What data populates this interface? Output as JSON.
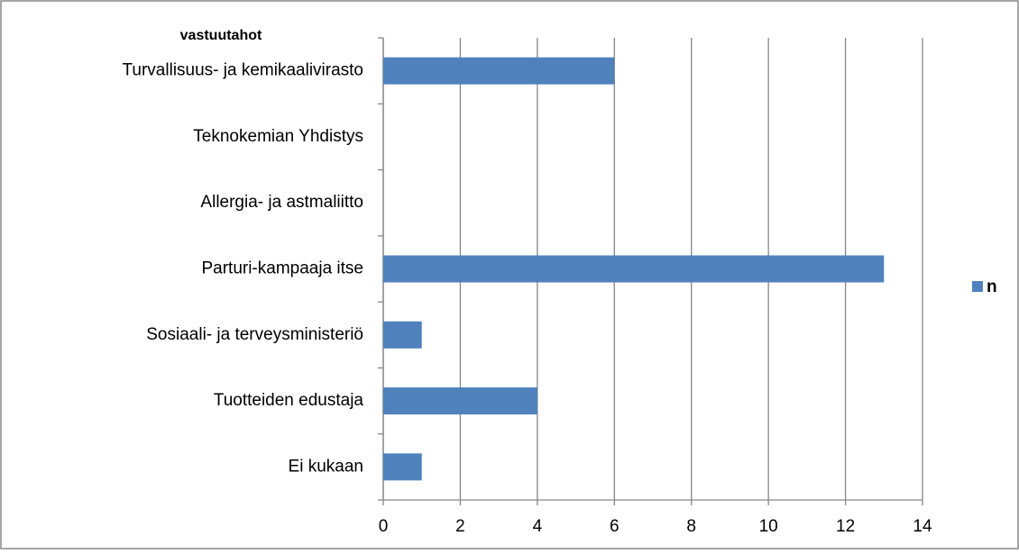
{
  "chart_data": {
    "type": "barh",
    "axis_title": "vastuutahot",
    "categories": [
      "Turvallisuus- ja kemikaalivirasto",
      "Teknokemian Yhdistys",
      "Allergia- ja astmaliitto",
      "Parturi-kampaaja itse",
      "Sosiaali- ja terveysministeriö",
      "Tuotteiden edustaja",
      "Ei kukaan"
    ],
    "series": [
      {
        "name": "n",
        "color": "#4f81bd",
        "values": [
          6,
          0,
          0,
          13,
          1,
          4,
          1
        ]
      }
    ],
    "xlim": [
      0,
      14
    ],
    "xticks": [
      0,
      2,
      4,
      6,
      8,
      10,
      12,
      14
    ],
    "grid": true,
    "legend": "right"
  }
}
